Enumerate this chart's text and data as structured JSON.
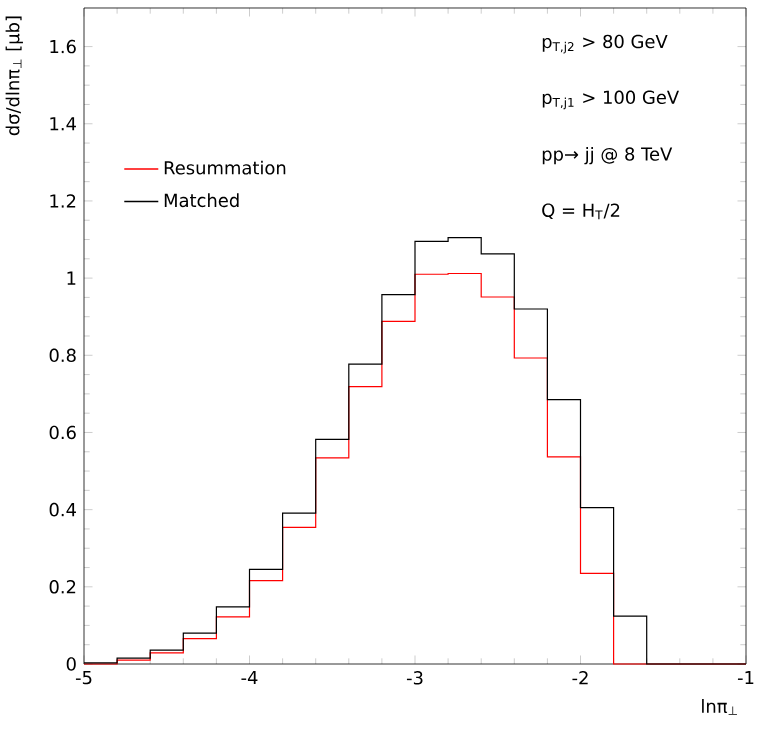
{
  "chart_data": {
    "type": "histogram",
    "xlabel": "lnπ$_{⊥}$",
    "ylabel": "dσ/dlnπ$_{⊥}$ [μb]",
    "bins": [
      -5,
      -4.8,
      -4.6,
      -4.4,
      -4.2,
      -4,
      -3.8,
      -3.6,
      -3.4,
      -3.2,
      -3,
      -2.8,
      -2.6,
      -2.4,
      -2.2,
      -2,
      -1.8,
      -1.6,
      -1.4,
      -1.2,
      -1
    ],
    "series": [
      {
        "name": "Resummation",
        "color": "#ff0000",
        "values": [
          0,
          0.01,
          0.029,
          0.066,
          0.122,
          0.216,
          0.354,
          0.534,
          0.719,
          0.888,
          1.01,
          1.012,
          0.951,
          0.793,
          0.537,
          0.235,
          0,
          0,
          0,
          0
        ]
      },
      {
        "name": "Matched",
        "color": "#000000",
        "values": [
          0.003,
          0.015,
          0.036,
          0.08,
          0.148,
          0.245,
          0.391,
          0.582,
          0.777,
          0.957,
          1.095,
          1.105,
          1.063,
          0.92,
          0.685,
          0.405,
          0.124,
          0,
          0,
          0
        ]
      }
    ],
    "xlim": [
      -5,
      -1
    ],
    "xticks": [
      -5,
      -4,
      -3,
      -2,
      -1
    ],
    "ylim": [
      0,
      1.7
    ],
    "yticks": [
      0,
      0.2,
      0.4,
      0.6,
      0.8,
      1,
      1.2,
      1.4,
      1.6
    ],
    "legend": "top left",
    "annotations": [
      "p$_{T,j2}$ > 80 GeV",
      "p$_{T,j1}$ > 100 GeV",
      "pp→ jj @ 8 TeV",
      "Q = H$_{T}$/2"
    ]
  }
}
